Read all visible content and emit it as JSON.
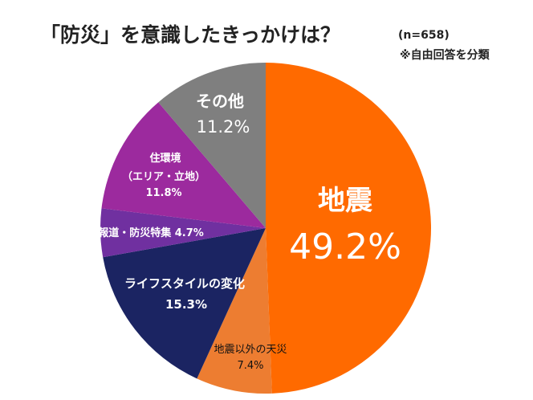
{
  "chart_data": {
    "type": "pie",
    "title": "「防災」を意識したきっかけは？",
    "sample_size": "(n=658)",
    "note": "※自由回答を分類",
    "slices": [
      {
        "label": "地震",
        "sublabel": "",
        "value": 49.2,
        "value_label": "49.2%",
        "color": "#FF6A00"
      },
      {
        "label": "地震以外の天災",
        "sublabel": "",
        "value": 7.4,
        "value_label": "7.4%",
        "color": "#ED7D31"
      },
      {
        "label": "ライフスタイルの変化",
        "sublabel": "",
        "value": 15.3,
        "value_label": "15.3%",
        "color": "#1B2462"
      },
      {
        "label": "報道・防災特集",
        "sublabel": "",
        "value": 4.7,
        "value_label": "4.7%",
        "color": "#7030A0"
      },
      {
        "label": "住環境",
        "sublabel": "（エリア・立地）",
        "value": 11.8,
        "value_label": "11.8%",
        "color": "#9C2A9E"
      },
      {
        "label": "その他",
        "sublabel": "",
        "value": 11.2,
        "value_label": "11.2%",
        "color": "#7F7F7F"
      }
    ]
  }
}
